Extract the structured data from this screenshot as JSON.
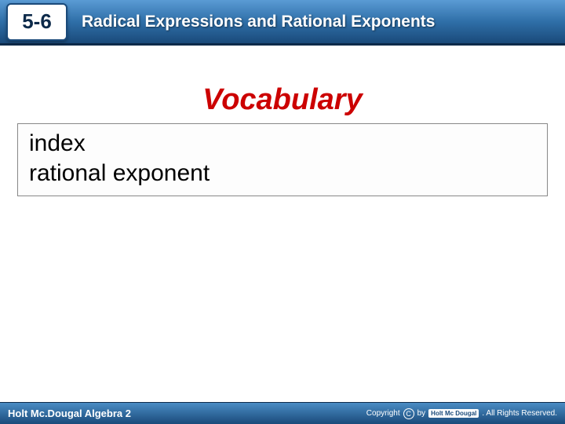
{
  "header": {
    "section_number": "5-6",
    "title": "Radical Expressions and Rational Exponents",
    "bg_gradient_top": "#5a9bd4",
    "bg_gradient_mid": "#2f6fa8",
    "bg_gradient_bottom": "#1a4a7a"
  },
  "main": {
    "heading": "Vocabulary",
    "heading_color": "#cc0000",
    "terms": [
      "index",
      "rational exponent"
    ]
  },
  "footer": {
    "left_text": "Holt Mc.Dougal Algebra 2",
    "copyright_text": "Copyright",
    "by_text": "by",
    "logo_text": "Holt Mc Dougal",
    "rights_text": ". All Rights Reserved."
  },
  "colors": {
    "white": "#ffffff",
    "black": "#000000",
    "border_gray": "#888888"
  }
}
